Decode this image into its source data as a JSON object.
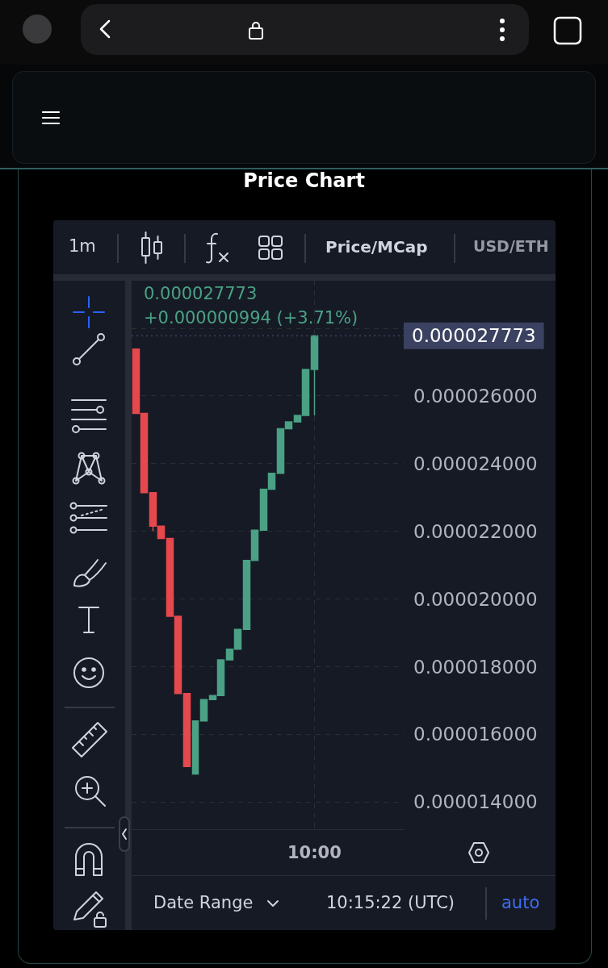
{
  "chart_data": {
    "type": "candlestick",
    "title": "Price Chart",
    "categories": [
      null,
      null,
      null,
      null,
      null,
      null,
      null,
      null,
      null,
      null,
      null,
      null,
      null,
      null,
      null,
      null,
      null,
      null,
      null,
      null,
      null,
      "10:00",
      null,
      null,
      null,
      null,
      null,
      null,
      null,
      null,
      null,
      null
    ],
    "ohlc": [
      [
        2.738e-05,
        2.738e-05,
        2.548e-05,
        2.548e-05
      ],
      [
        2.548e-05,
        2.548e-05,
        2.314e-05,
        2.314e-05
      ],
      [
        2.314e-05,
        2.314e-05,
        2.201e-05,
        2.215e-05
      ],
      [
        2.215e-05,
        2.215e-05,
        2.179e-05,
        2.179e-05
      ],
      [
        2.179e-05,
        2.179e-05,
        1.949e-05,
        1.949e-05
      ],
      [
        1.949e-05,
        1.949e-05,
        1.721e-05,
        1.721e-05
      ],
      [
        1.721e-05,
        1.721e-05,
        1.505e-05,
        1.505e-05
      ],
      [
        1.483e-05,
        1.64e-05,
        1.483e-05,
        1.64e-05
      ],
      [
        1.64e-05,
        1.703e-05,
        1.64e-05,
        1.703e-05
      ],
      [
        1.703e-05,
        1.715e-05,
        1.703e-05,
        1.715e-05
      ],
      [
        1.715e-05,
        1.82e-05,
        1.715e-05,
        1.82e-05
      ],
      [
        1.82e-05,
        1.852e-05,
        1.82e-05,
        1.852e-05
      ],
      [
        1.852e-05,
        1.91e-05,
        1.852e-05,
        1.91e-05
      ],
      [
        1.91e-05,
        2.114e-05,
        1.91e-05,
        2.114e-05
      ],
      [
        2.114e-05,
        2.203e-05,
        2.114e-05,
        2.203e-05
      ],
      [
        2.203e-05,
        2.324e-05,
        2.203e-05,
        2.324e-05
      ],
      [
        2.324e-05,
        2.371e-05,
        2.324e-05,
        2.371e-05
      ],
      [
        2.371e-05,
        2.503e-05,
        2.371e-05,
        2.503e-05
      ],
      [
        2.503e-05,
        2.523e-05,
        2.503e-05,
        2.523e-05
      ],
      [
        2.523e-05,
        2.542e-05,
        2.523e-05,
        2.542e-05
      ],
      [
        2.542e-05,
        2.6779e-05,
        2.542e-05,
        2.6779e-05
      ],
      [
        2.6779e-05,
        2.7773e-05,
        2.542e-05,
        2.7773e-05
      ],
      null,
      null,
      null,
      null,
      null,
      null,
      null,
      null,
      null,
      null
    ],
    "colors": [
      "#e5484d",
      "#e5484d",
      "#e5484d",
      "#e5484d",
      "#e5484d",
      "#e5484d",
      "#e5484d",
      "#4aa184",
      "#4aa184",
      "#4aa184",
      "#4aa184",
      "#4aa184",
      "#4aa184",
      "#4aa184",
      "#4aa184",
      "#4aa184",
      "#4aa184",
      "#4aa184",
      "#4aa184",
      "#4aa184",
      "#4aa184",
      "#4aa184",
      null,
      null,
      null,
      null,
      null,
      null,
      null,
      null,
      null,
      null
    ],
    "ylim": [
      1.32e-05,
      2.94e-05
    ],
    "yticks": [
      {
        "value": 1.4e-05,
        "label": "0.000014000"
      },
      {
        "value": 1.6e-05,
        "label": "0.000016000"
      },
      {
        "value": 1.8e-05,
        "label": "0.000018000"
      },
      {
        "value": 2e-05,
        "label": "0.000020000"
      },
      {
        "value": 2.2e-05,
        "label": "0.000022000"
      },
      {
        "value": 2.4e-05,
        "label": "0.000024000"
      },
      {
        "value": 2.6e-05,
        "label": "0.000026000"
      },
      {
        "value": 2.8e-05,
        "label": null
      }
    ],
    "grid": true,
    "ref_lines": [
      {
        "axis": "y",
        "value": 2.7773e-05,
        "label": "0.000027773",
        "color": "#3b4160",
        "line_style": "dotted"
      }
    ],
    "annotations": [
      "1m",
      "Price/MCap",
      "USD/ETH",
      "0.000027773",
      "+0.000000994 (+3.71%)",
      "Date Range",
      "10:15:22 (UTC)",
      "auto"
    ]
  }
}
